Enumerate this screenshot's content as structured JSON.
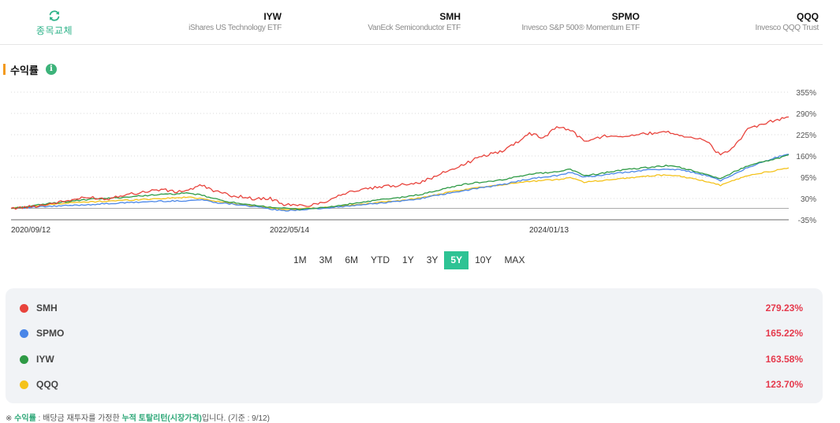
{
  "header": {
    "swap_label": "종목교체",
    "etfs": [
      {
        "ticker": "IYW",
        "name": "iShares US Technology ETF"
      },
      {
        "ticker": "SMH",
        "name": "VanEck Semiconductor ETF"
      },
      {
        "ticker": "SPMO",
        "name": "Invesco S&P 500® Momentum ETF"
      },
      {
        "ticker": "QQQ",
        "name": "Invesco QQQ Trust"
      }
    ]
  },
  "section": {
    "title": "수익률",
    "info_icon": "info-icon"
  },
  "chart_data": {
    "type": "line",
    "x_ticks": [
      "2020/09/12",
      "2022/05/14",
      "2024/01/13"
    ],
    "y_ticks": [
      "355%",
      "290%",
      "225%",
      "160%",
      "95%",
      "30%",
      "-35%"
    ],
    "ylim": [
      -35,
      355
    ],
    "grid": true,
    "series": [
      {
        "name": "SMH",
        "color": "#e8433c",
        "values": [
          0,
          3,
          8,
          15,
          22,
          30,
          33,
          28,
          40,
          45,
          52,
          58,
          50,
          56,
          70,
          52,
          40,
          35,
          28,
          30,
          12,
          8,
          10,
          20,
          40,
          52,
          58,
          65,
          68,
          75,
          80,
          95,
          115,
          130,
          150,
          165,
          175,
          200,
          230,
          215,
          250,
          240,
          205,
          215,
          225,
          220,
          225,
          230,
          235,
          225,
          215,
          205,
          160,
          190,
          240,
          255,
          270,
          279.23
        ]
      },
      {
        "name": "SPMO",
        "color": "#4a86e8",
        "values": [
          0,
          2,
          4,
          6,
          8,
          10,
          12,
          14,
          16,
          18,
          20,
          22,
          22,
          24,
          26,
          18,
          14,
          10,
          4,
          -2,
          -8,
          -5,
          -2,
          0,
          4,
          8,
          12,
          16,
          20,
          24,
          30,
          38,
          45,
          52,
          60,
          66,
          72,
          82,
          90,
          95,
          100,
          110,
          95,
          100,
          105,
          110,
          115,
          118,
          120,
          118,
          110,
          100,
          85,
          105,
          125,
          140,
          155,
          165.22
        ]
      },
      {
        "name": "IYW",
        "color": "#2e9a45",
        "values": [
          0,
          4,
          10,
          16,
          20,
          24,
          28,
          30,
          33,
          36,
          40,
          42,
          44,
          46,
          40,
          28,
          20,
          12,
          8,
          4,
          0,
          -3,
          0,
          2,
          8,
          14,
          20,
          26,
          30,
          36,
          42,
          52,
          62,
          72,
          78,
          82,
          86,
          96,
          105,
          108,
          112,
          120,
          100,
          105,
          112,
          118,
          122,
          126,
          130,
          125,
          115,
          102,
          90,
          112,
          130,
          142,
          150,
          163.58
        ]
      },
      {
        "name": "QQQ",
        "color": "#f4c21a",
        "values": [
          0,
          3,
          7,
          12,
          16,
          18,
          20,
          22,
          24,
          26,
          28,
          30,
          32,
          34,
          30,
          22,
          16,
          10,
          6,
          2,
          -4,
          -2,
          0,
          2,
          6,
          10,
          14,
          18,
          22,
          26,
          32,
          40,
          48,
          55,
          62,
          68,
          72,
          78,
          82,
          85,
          88,
          94,
          80,
          84,
          88,
          92,
          96,
          100,
          102,
          98,
          90,
          82,
          70,
          86,
          100,
          108,
          115,
          123.7
        ]
      }
    ]
  },
  "range_buttons": [
    "1M",
    "3M",
    "6M",
    "YTD",
    "1Y",
    "3Y",
    "5Y",
    "10Y",
    "MAX"
  ],
  "active_range": "5Y",
  "legend": [
    {
      "name": "SMH",
      "value": "279.23%",
      "color": "#e8433c"
    },
    {
      "name": "SPMO",
      "value": "165.22%",
      "color": "#4a86e8"
    },
    {
      "name": "IYW",
      "value": "163.58%",
      "color": "#2e9a45"
    },
    {
      "name": "QQQ",
      "value": "123.70%",
      "color": "#f4c21a"
    }
  ],
  "footnote": {
    "prefix": "※ ",
    "term": "수익률",
    "middle": " : 배당금 재투자를 가정한 ",
    "highlight": "누적 토탈리턴(시장가격)",
    "suffix": "입니다. (기준 : 9/12)"
  }
}
